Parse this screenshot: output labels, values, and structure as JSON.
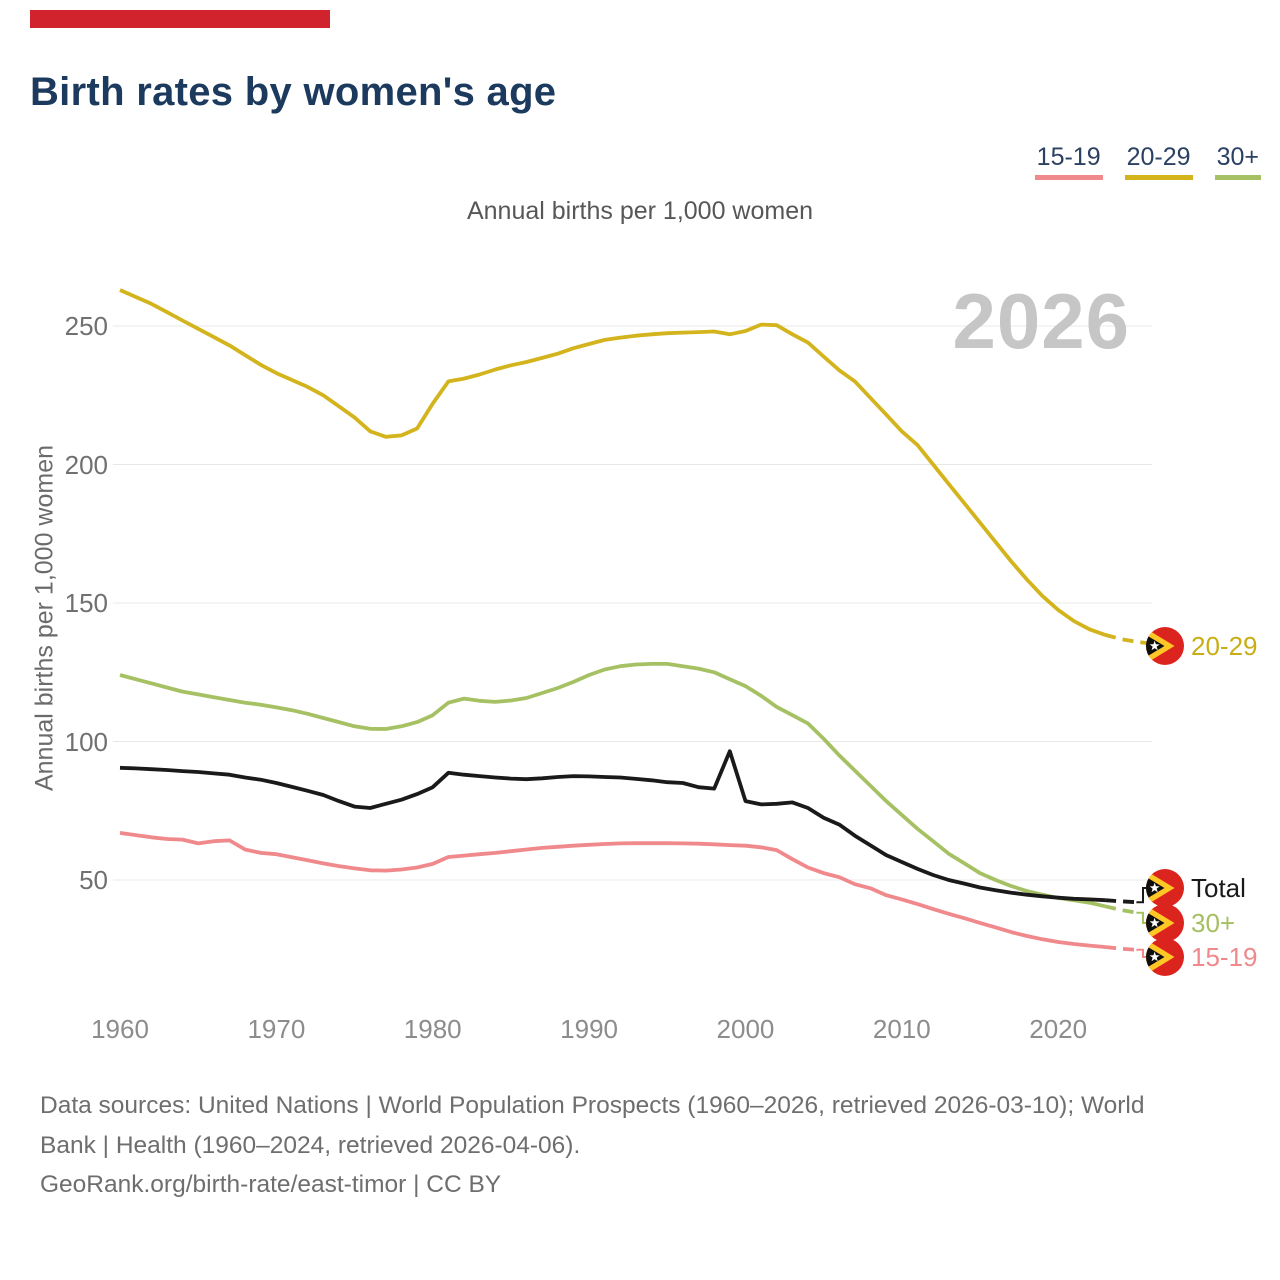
{
  "page": {
    "accent_bar_color": "#d0232e"
  },
  "legend": {
    "items": [
      {
        "label": "15-19",
        "color": "#f0898c"
      },
      {
        "label": "20-29",
        "color": "#d3b41d"
      },
      {
        "label": "30+",
        "color": "#a6c164"
      }
    ]
  },
  "chart_data": {
    "type": "line",
    "title": "Birth rates by women's age",
    "subtitle": "Annual births per 1,000 women",
    "ylabel": "Annual births per 1,000 women",
    "watermark": "2026",
    "x_range": [
      1960,
      2026
    ],
    "x_ticks": [
      1960,
      1970,
      1980,
      1990,
      2000,
      2010,
      2020
    ],
    "y_ticks": [
      50,
      100,
      150,
      200,
      250
    ],
    "grid": true,
    "legend_position": "top-right",
    "projection_dash_from": 2023,
    "series": [
      {
        "name": "20-29",
        "color": "#d3b41d",
        "points": [
          [
            1960,
            263
          ],
          [
            1961,
            260.5
          ],
          [
            1962,
            258
          ],
          [
            1963,
            255
          ],
          [
            1964,
            252
          ],
          [
            1965,
            249
          ],
          [
            1966,
            246
          ],
          [
            1967,
            243
          ],
          [
            1968,
            239.5
          ],
          [
            1969,
            236
          ],
          [
            1970,
            233
          ],
          [
            1971,
            230.5
          ],
          [
            1972,
            228
          ],
          [
            1973,
            225
          ],
          [
            1974,
            221
          ],
          [
            1975,
            217
          ],
          [
            1976,
            212
          ],
          [
            1977,
            210
          ],
          [
            1978,
            210.5
          ],
          [
            1979,
            213
          ],
          [
            1980,
            222
          ],
          [
            1981,
            230
          ],
          [
            1982,
            231
          ],
          [
            1983,
            232.5
          ],
          [
            1984,
            234.3
          ],
          [
            1985,
            235.8
          ],
          [
            1986,
            237
          ],
          [
            1987,
            238.5
          ],
          [
            1988,
            240
          ],
          [
            1989,
            242
          ],
          [
            1990,
            243.5
          ],
          [
            1991,
            245
          ],
          [
            1992,
            245.8
          ],
          [
            1993,
            246.5
          ],
          [
            1994,
            247
          ],
          [
            1995,
            247.4
          ],
          [
            1996,
            247.6
          ],
          [
            1997,
            247.8
          ],
          [
            1998,
            248
          ],
          [
            1999,
            247
          ],
          [
            2000,
            248.2
          ],
          [
            2001,
            250.5
          ],
          [
            2002,
            250.3
          ],
          [
            2003,
            247
          ],
          [
            2004,
            244
          ],
          [
            2005,
            239
          ],
          [
            2006,
            234
          ],
          [
            2007,
            230
          ],
          [
            2008,
            224
          ],
          [
            2009,
            218
          ],
          [
            2010,
            212
          ],
          [
            2011,
            207
          ],
          [
            2012,
            200
          ],
          [
            2013,
            193
          ],
          [
            2014,
            186
          ],
          [
            2015,
            179
          ],
          [
            2016,
            172
          ],
          [
            2017,
            165
          ],
          [
            2018,
            158.5
          ],
          [
            2019,
            152.5
          ],
          [
            2020,
            147.5
          ],
          [
            2021,
            143.5
          ],
          [
            2022,
            140.5
          ],
          [
            2023,
            138.5
          ],
          [
            2024,
            137
          ],
          [
            2025,
            136
          ],
          [
            2026,
            135.3
          ]
        ]
      },
      {
        "name": "30+",
        "color": "#a6c164",
        "points": [
          [
            1960,
            124
          ],
          [
            1961,
            122.5
          ],
          [
            1962,
            121
          ],
          [
            1963,
            119.5
          ],
          [
            1964,
            118
          ],
          [
            1965,
            117
          ],
          [
            1966,
            116
          ],
          [
            1967,
            115
          ],
          [
            1968,
            114
          ],
          [
            1969,
            113.3
          ],
          [
            1970,
            112.3
          ],
          [
            1971,
            111.3
          ],
          [
            1972,
            110
          ],
          [
            1973,
            108.5
          ],
          [
            1974,
            107
          ],
          [
            1975,
            105.5
          ],
          [
            1976,
            104.6
          ],
          [
            1977,
            104.5
          ],
          [
            1978,
            105.5
          ],
          [
            1979,
            107
          ],
          [
            1980,
            109.5
          ],
          [
            1981,
            114
          ],
          [
            1982,
            115.5
          ],
          [
            1983,
            114.7
          ],
          [
            1984,
            114.3
          ],
          [
            1985,
            114.8
          ],
          [
            1986,
            115.7
          ],
          [
            1987,
            117.5
          ],
          [
            1988,
            119.3
          ],
          [
            1989,
            121.5
          ],
          [
            1990,
            124
          ],
          [
            1991,
            126
          ],
          [
            1992,
            127.2
          ],
          [
            1993,
            127.8
          ],
          [
            1994,
            128
          ],
          [
            1995,
            128
          ],
          [
            1996,
            127.2
          ],
          [
            1997,
            126.3
          ],
          [
            1998,
            125
          ],
          [
            1999,
            122.5
          ],
          [
            2000,
            120
          ],
          [
            2001,
            116.5
          ],
          [
            2002,
            112.5
          ],
          [
            2003,
            109.5
          ],
          [
            2004,
            106.5
          ],
          [
            2005,
            101
          ],
          [
            2006,
            95
          ],
          [
            2007,
            89.5
          ],
          [
            2008,
            84
          ],
          [
            2009,
            78.5
          ],
          [
            2010,
            73.5
          ],
          [
            2011,
            68.5
          ],
          [
            2012,
            64
          ],
          [
            2013,
            59.5
          ],
          [
            2014,
            56
          ],
          [
            2015,
            52.5
          ],
          [
            2016,
            50
          ],
          [
            2017,
            47.8
          ],
          [
            2018,
            46
          ],
          [
            2019,
            44.7
          ],
          [
            2020,
            43.5
          ],
          [
            2021,
            42.7
          ],
          [
            2022,
            41.8
          ],
          [
            2023,
            40.5
          ],
          [
            2024,
            39.2
          ],
          [
            2025,
            38.2
          ],
          [
            2026,
            37.4
          ]
        ]
      },
      {
        "name": "Total",
        "color": "#1a1a1a",
        "points": [
          [
            1960,
            90.5
          ],
          [
            1961,
            90.3
          ],
          [
            1962,
            90
          ],
          [
            1963,
            89.7
          ],
          [
            1964,
            89.3
          ],
          [
            1965,
            89
          ],
          [
            1966,
            88.5
          ],
          [
            1967,
            88
          ],
          [
            1968,
            87
          ],
          [
            1969,
            86.2
          ],
          [
            1970,
            85
          ],
          [
            1971,
            83.6
          ],
          [
            1972,
            82.2
          ],
          [
            1973,
            80.7
          ],
          [
            1974,
            78.5
          ],
          [
            1975,
            76.5
          ],
          [
            1976,
            76
          ],
          [
            1977,
            77.5
          ],
          [
            1978,
            79
          ],
          [
            1979,
            81
          ],
          [
            1980,
            83.5
          ],
          [
            1981,
            88.7
          ],
          [
            1982,
            88
          ],
          [
            1983,
            87.5
          ],
          [
            1984,
            87
          ],
          [
            1985,
            86.6
          ],
          [
            1986,
            86.4
          ],
          [
            1987,
            86.7
          ],
          [
            1988,
            87.2
          ],
          [
            1989,
            87.5
          ],
          [
            1990,
            87.4
          ],
          [
            1991,
            87.2
          ],
          [
            1992,
            87
          ],
          [
            1993,
            86.5
          ],
          [
            1994,
            86
          ],
          [
            1995,
            85.3
          ],
          [
            1996,
            85
          ],
          [
            1997,
            83.5
          ],
          [
            1998,
            83
          ],
          [
            1999,
            96.5
          ],
          [
            2000,
            78.5
          ],
          [
            2001,
            77.3
          ],
          [
            2002,
            77.5
          ],
          [
            2003,
            78
          ],
          [
            2004,
            76
          ],
          [
            2005,
            72.5
          ],
          [
            2006,
            70
          ],
          [
            2007,
            66
          ],
          [
            2008,
            62.5
          ],
          [
            2009,
            59
          ],
          [
            2010,
            56.5
          ],
          [
            2011,
            54
          ],
          [
            2012,
            51.8
          ],
          [
            2013,
            50
          ],
          [
            2014,
            48.7
          ],
          [
            2015,
            47.3
          ],
          [
            2016,
            46.3
          ],
          [
            2017,
            45.4
          ],
          [
            2018,
            44.7
          ],
          [
            2019,
            44.1
          ],
          [
            2020,
            43.6
          ],
          [
            2021,
            43.2
          ],
          [
            2022,
            43
          ],
          [
            2023,
            42.7
          ],
          [
            2024,
            42.3
          ],
          [
            2025,
            42
          ],
          [
            2026,
            41.7
          ]
        ]
      },
      {
        "name": "15-19",
        "color": "#f0898c",
        "points": [
          [
            1960,
            67
          ],
          [
            1961,
            66.2
          ],
          [
            1962,
            65.4
          ],
          [
            1963,
            64.8
          ],
          [
            1964,
            64.6
          ],
          [
            1965,
            63.2
          ],
          [
            1966,
            64
          ],
          [
            1967,
            64.3
          ],
          [
            1968,
            61
          ],
          [
            1969,
            59.8
          ],
          [
            1970,
            59.3
          ],
          [
            1971,
            58.2
          ],
          [
            1972,
            57.1
          ],
          [
            1973,
            56
          ],
          [
            1974,
            55
          ],
          [
            1975,
            54.2
          ],
          [
            1976,
            53.5
          ],
          [
            1977,
            53.4
          ],
          [
            1978,
            53.8
          ],
          [
            1979,
            54.5
          ],
          [
            1980,
            55.8
          ],
          [
            1981,
            58.3
          ],
          [
            1982,
            58.8
          ],
          [
            1983,
            59.3
          ],
          [
            1984,
            59.8
          ],
          [
            1985,
            60.4
          ],
          [
            1986,
            61
          ],
          [
            1987,
            61.6
          ],
          [
            1988,
            62
          ],
          [
            1989,
            62.4
          ],
          [
            1990,
            62.7
          ],
          [
            1991,
            63
          ],
          [
            1992,
            63.2
          ],
          [
            1993,
            63.3
          ],
          [
            1994,
            63.3
          ],
          [
            1995,
            63.3
          ],
          [
            1996,
            63.2
          ],
          [
            1997,
            63.1
          ],
          [
            1998,
            62.9
          ],
          [
            1999,
            62.6
          ],
          [
            2000,
            62.4
          ],
          [
            2001,
            61.8
          ],
          [
            2002,
            60.8
          ],
          [
            2003,
            57.5
          ],
          [
            2004,
            54.5
          ],
          [
            2005,
            52.5
          ],
          [
            2006,
            51
          ],
          [
            2007,
            48.5
          ],
          [
            2008,
            47
          ],
          [
            2009,
            44.5
          ],
          [
            2010,
            43
          ],
          [
            2011,
            41.3
          ],
          [
            2012,
            39.5
          ],
          [
            2013,
            37.8
          ],
          [
            2014,
            36.2
          ],
          [
            2015,
            34.5
          ],
          [
            2016,
            32.9
          ],
          [
            2017,
            31.2
          ],
          [
            2018,
            29.8
          ],
          [
            2019,
            28.6
          ],
          [
            2020,
            27.6
          ],
          [
            2021,
            26.9
          ],
          [
            2022,
            26.3
          ],
          [
            2023,
            25.8
          ],
          [
            2024,
            25.2
          ],
          [
            2025,
            24.8
          ],
          [
            2026,
            24.4
          ]
        ]
      }
    ],
    "endpoint_labels": [
      {
        "series": "20-29",
        "label": "20-29",
        "color": "#c9ad15"
      },
      {
        "series": "Total",
        "label": "Total",
        "color": "#1a1a1a"
      },
      {
        "series": "30+",
        "label": "30+",
        "color": "#a4bf60"
      },
      {
        "series": "15-19",
        "label": "15-19",
        "color": "#f0898c"
      }
    ]
  },
  "footer": {
    "lines": [
      "Data sources: United Nations | World Population Prospects (1960–2026, retrieved 2026-03-10); World",
      "Bank | Health (1960–2024, retrieved 2026-04-06).",
      "GeoRank.org/birth-rate/east-timor | CC BY"
    ]
  },
  "colors": {
    "title": "#1c3a5e",
    "gridline": "#e8e8e8",
    "watermark": "#c6c6c6",
    "axis_text": "#707070",
    "flag_red": "#DC241F",
    "flag_yellow": "#FFC726",
    "flag_black": "#0f0f0f"
  }
}
